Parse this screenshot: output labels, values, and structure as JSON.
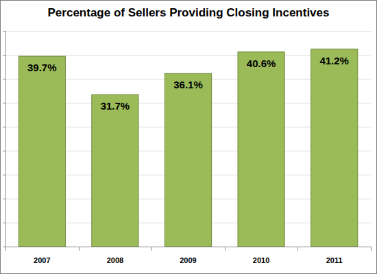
{
  "chart_data": {
    "type": "bar",
    "title": "Percentage of Sellers Providing Closing Incentives",
    "categories": [
      "2007",
      "2008",
      "2009",
      "2010",
      "2011"
    ],
    "values": [
      39.7,
      31.7,
      36.1,
      40.6,
      41.2
    ],
    "value_labels": [
      "39.7%",
      "31.7%",
      "36.1%",
      "40.6%",
      "41.2%"
    ],
    "color": "#9bbb59",
    "ylim": [
      0,
      45
    ],
    "yticks": [
      0,
      5,
      10,
      15,
      20,
      25,
      30,
      35,
      40,
      45
    ],
    "grid": true,
    "data_labels": true,
    "tick_labels": "x"
  }
}
